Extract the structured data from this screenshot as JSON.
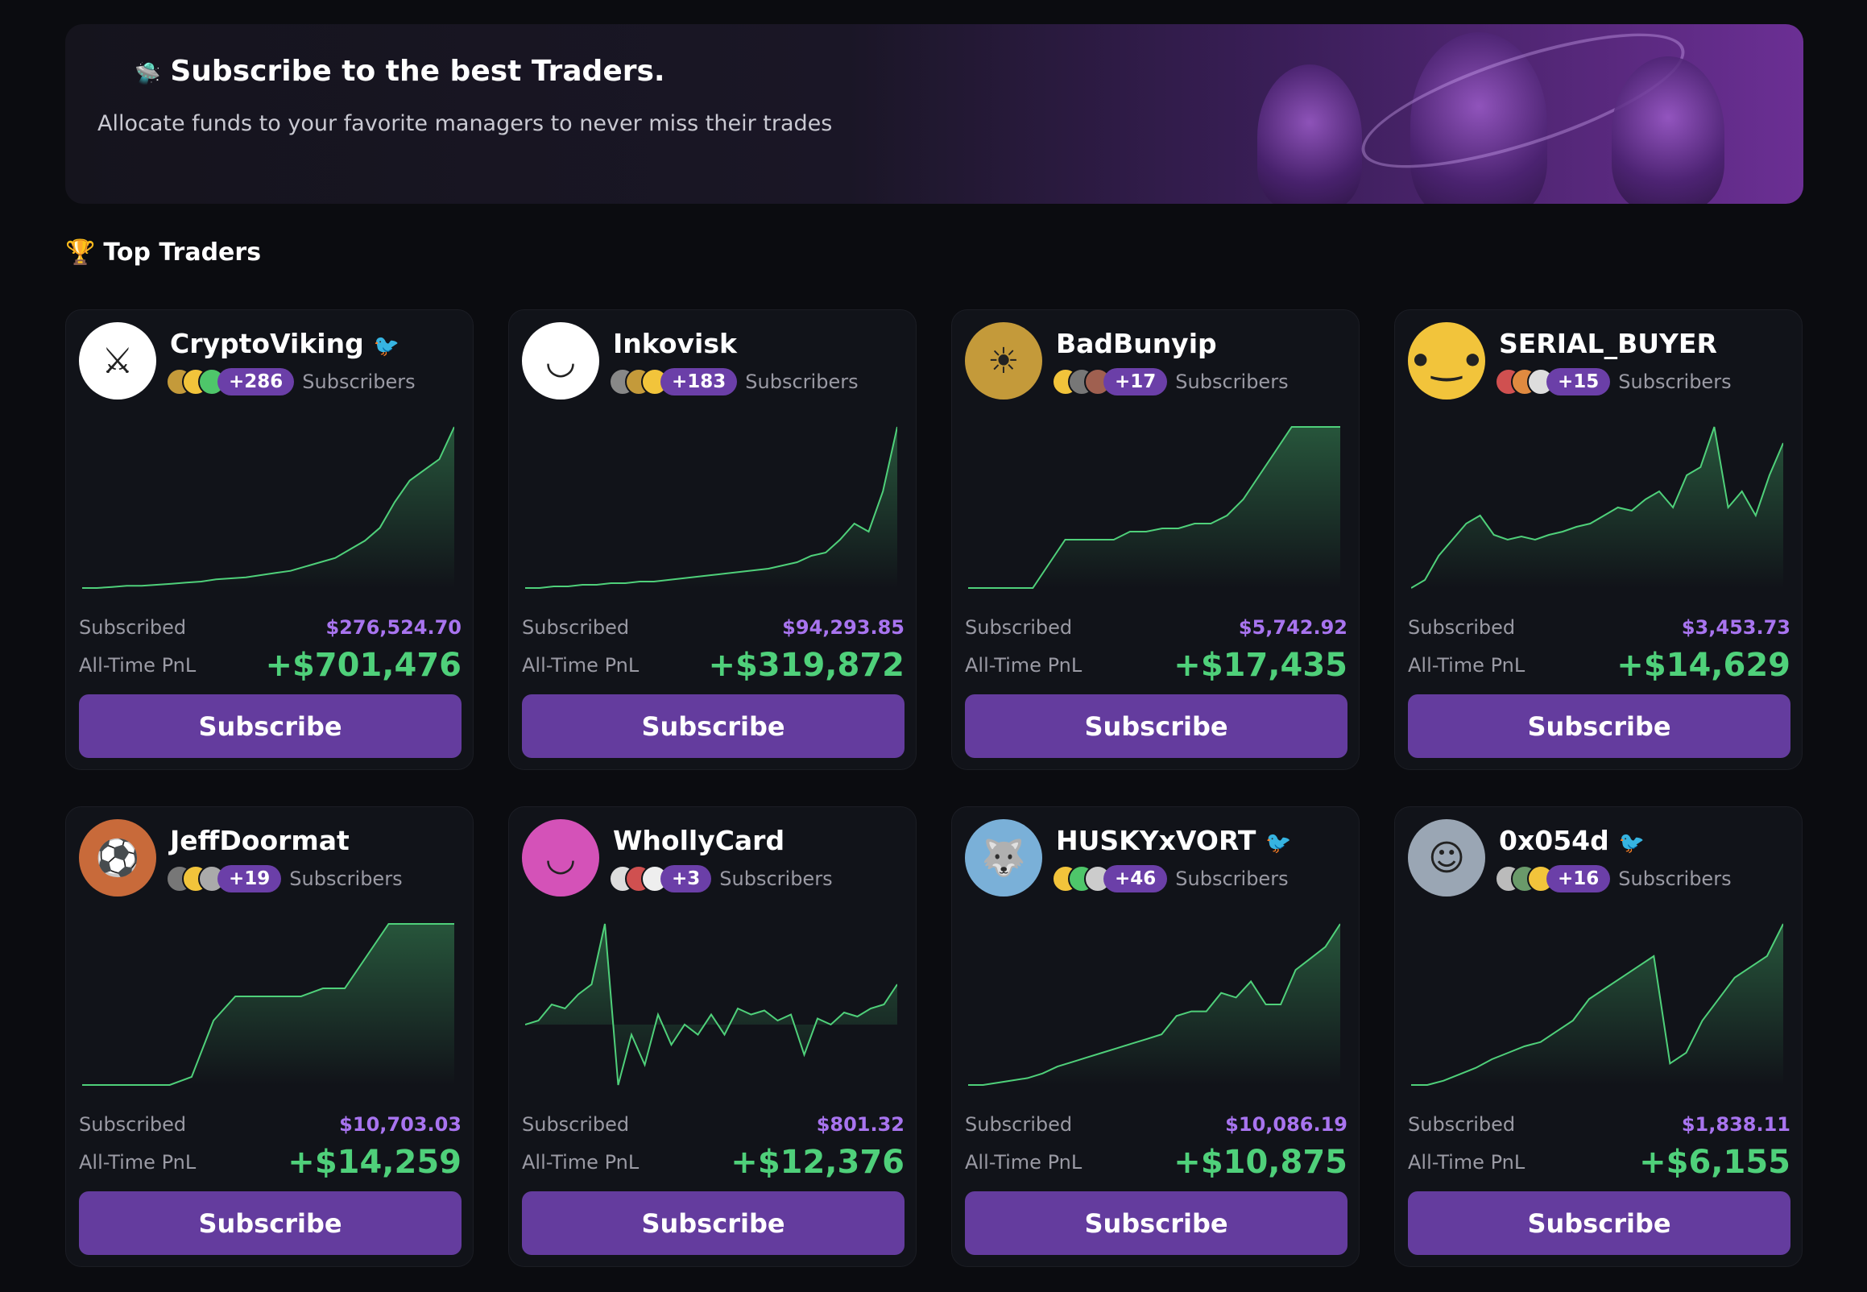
{
  "banner": {
    "icon": "ufo-icon",
    "title": "Subscribe to the best Traders.",
    "subtitle": "Allocate funds to your favorite managers to never miss their trades"
  },
  "section": {
    "icon": "trophy-icon",
    "title": "Top Traders"
  },
  "labels": {
    "subscribers": "Subscribers",
    "subscribed": "Subscribed",
    "pnl": "All-Time PnL",
    "subscribe": "Subscribe"
  },
  "colors": {
    "accent": "#643c9e",
    "purple_text": "#a874ef",
    "green": "#4fd07a"
  },
  "traders": [
    {
      "name": "CryptoViking",
      "twitter": true,
      "extra": "+286",
      "subscribed": "$276,524.70",
      "pnl": "+$701,476",
      "avatar_color": "#ffffff",
      "glyph": "⚔",
      "mini": [
        "#c49a3a",
        "#f2c43b",
        "#4ec66a"
      ],
      "chart": [
        0,
        0,
        0.5,
        1,
        1,
        1.5,
        2,
        2.5,
        3,
        4,
        4.5,
        5,
        6,
        7,
        8,
        10,
        12,
        14,
        18,
        22,
        28,
        40,
        50,
        55,
        60,
        75
      ]
    },
    {
      "name": "Inkovisk",
      "twitter": false,
      "extra": "+183",
      "subscribed": "$94,293.85",
      "pnl": "+$319,872",
      "avatar_color": "#ffffff",
      "glyph": "◡",
      "mini": [
        "#888",
        "#c49a3a",
        "#f2c43b"
      ],
      "chart": [
        0,
        0,
        1,
        1,
        2,
        2,
        3,
        3,
        4,
        4,
        5,
        6,
        7,
        8,
        9,
        10,
        11,
        12,
        14,
        16,
        20,
        22,
        30,
        40,
        35,
        60,
        100
      ]
    },
    {
      "name": "BadBunyip",
      "twitter": false,
      "extra": "+17",
      "subscribed": "$5,742.92",
      "pnl": "+$17,435",
      "avatar_color": "#c49a3a",
      "glyph": "☀",
      "mini": [
        "#f2c43b",
        "#777",
        "#a06050"
      ],
      "chart": [
        0,
        0,
        0,
        0,
        0,
        15,
        30,
        30,
        30,
        30,
        35,
        35,
        37,
        37,
        40,
        40,
        45,
        55,
        70,
        85,
        100,
        100,
        100,
        100
      ]
    },
    {
      "name": "SERIAL_BUYER",
      "twitter": false,
      "extra": "+15",
      "subscribed": "$3,453.73",
      "pnl": "+$14,629",
      "avatar_color": "#f2c43b",
      "glyph": "•‿•",
      "mini": [
        "#d05050",
        "#e08a40",
        "#ddd"
      ],
      "chart": [
        0,
        5,
        20,
        30,
        40,
        45,
        33,
        30,
        32,
        30,
        33,
        35,
        38,
        40,
        45,
        50,
        48,
        55,
        60,
        50,
        70,
        75,
        100,
        50,
        60,
        45,
        70,
        90
      ]
    },
    {
      "name": "JeffDoormat",
      "twitter": false,
      "extra": "+19",
      "subscribed": "$10,703.03",
      "pnl": "+$14,259",
      "avatar_color": "#c86a3a",
      "glyph": "⚽",
      "mini": [
        "#777",
        "#f2c43b",
        "#aaa"
      ],
      "chart": [
        0,
        0,
        0,
        0,
        0,
        5,
        40,
        55,
        55,
        55,
        55,
        60,
        60,
        80,
        100,
        100,
        100,
        100
      ]
    },
    {
      "name": "WhollyCard",
      "twitter": false,
      "extra": "+3",
      "subscribed": "$801.32",
      "pnl": "+$12,376",
      "avatar_color": "#d452b8",
      "glyph": "◡",
      "mini": [
        "#ddd",
        "#d05050",
        "#eee"
      ],
      "chart": [
        0,
        2,
        10,
        8,
        15,
        20,
        50,
        -30,
        -5,
        -20,
        5,
        -10,
        0,
        -5,
        5,
        -5,
        8,
        5,
        7,
        2,
        5,
        -15,
        3,
        0,
        6,
        4,
        8,
        10,
        20
      ]
    },
    {
      "name": "HUSKYxVORT",
      "twitter": true,
      "extra": "+46",
      "subscribed": "$10,086.19",
      "pnl": "+$10,875",
      "avatar_color": "#7ab0d8",
      "glyph": "🐺",
      "mini": [
        "#f2c43b",
        "#4ec66a",
        "#ccc"
      ],
      "chart": [
        0,
        0,
        1,
        2,
        3,
        5,
        8,
        10,
        12,
        14,
        16,
        18,
        20,
        22,
        30,
        32,
        32,
        40,
        38,
        45,
        35,
        35,
        50,
        55,
        60,
        70
      ]
    },
    {
      "name": "0x054d",
      "twitter": true,
      "extra": "+16",
      "subscribed": "$1,838.11",
      "pnl": "+$6,155",
      "avatar_color": "#9aa6b4",
      "glyph": "☺",
      "mini": [
        "#bbb",
        "#6a9a6a",
        "#f2c43b"
      ],
      "chart": [
        0,
        0,
        2,
        5,
        8,
        12,
        15,
        18,
        20,
        25,
        30,
        40,
        45,
        50,
        55,
        60,
        10,
        15,
        30,
        40,
        50,
        55,
        60,
        75
      ]
    }
  ]
}
